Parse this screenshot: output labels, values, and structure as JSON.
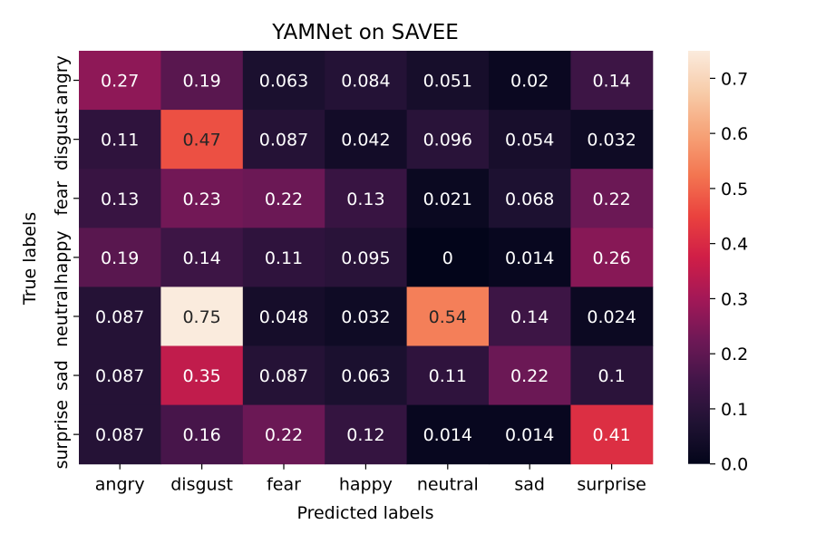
{
  "chart_data": {
    "type": "heatmap",
    "title": "YAMNet on SAVEE",
    "xlabel": "Predicted labels",
    "ylabel": "True labels",
    "x_categories": [
      "angry",
      "disgust",
      "fear",
      "happy",
      "neutral",
      "sad",
      "surprise"
    ],
    "y_categories": [
      "angry",
      "disgust",
      "fear",
      "happy",
      "neutral",
      "sad",
      "surprise"
    ],
    "values": [
      [
        "0.27",
        "0.19",
        "0.063",
        "0.084",
        "0.051",
        "0.02",
        "0.14"
      ],
      [
        "0.11",
        "0.47",
        "0.087",
        "0.042",
        "0.096",
        "0.054",
        "0.032"
      ],
      [
        "0.13",
        "0.23",
        "0.22",
        "0.13",
        "0.021",
        "0.068",
        "0.22"
      ],
      [
        "0.19",
        "0.14",
        "0.11",
        "0.095",
        "0",
        "0.014",
        "0.26"
      ],
      [
        "0.087",
        "0.75",
        "0.048",
        "0.032",
        "0.54",
        "0.14",
        "0.024"
      ],
      [
        "0.087",
        "0.35",
        "0.087",
        "0.063",
        "0.11",
        "0.22",
        "0.1"
      ],
      [
        "0.087",
        "0.16",
        "0.22",
        "0.12",
        "0.014",
        "0.014",
        "0.41"
      ]
    ],
    "colorbar": {
      "range": [
        0,
        0.75
      ],
      "ticks": [
        "0.0",
        "0.1",
        "0.2",
        "0.3",
        "0.4",
        "0.5",
        "0.6",
        "0.7"
      ]
    },
    "colormap": "rocket"
  }
}
